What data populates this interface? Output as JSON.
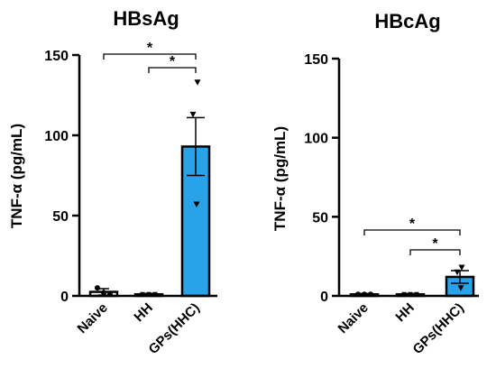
{
  "chart_data": [
    {
      "type": "bar",
      "title": "HBsAg",
      "ylabel": "TNF-α (pg/mL)",
      "xlabel": "",
      "categories": [
        "Naive",
        "HH",
        "GPs(HHC)"
      ],
      "values": [
        2.5,
        1.0,
        93.0
      ],
      "errors": [
        2.0,
        0.5,
        18.0
      ],
      "points": [
        [
          5,
          2,
          1
        ],
        [
          1,
          1,
          1
        ],
        [
          133,
          113,
          57
        ]
      ],
      "point_markers": [
        "circle",
        "square",
        "triangle-down"
      ],
      "ylim": [
        0,
        150
      ],
      "yticks": [
        0,
        50,
        100,
        150
      ],
      "significance": [
        {
          "from": "Naive",
          "to": "GPs(HHC)",
          "label": "*"
        },
        {
          "from": "HH",
          "to": "GPs(HHC)",
          "label": "*"
        }
      ],
      "colors": {
        "control": "#ffffff",
        "treated": "#29a3e8"
      }
    },
    {
      "type": "bar",
      "title": "HBcAg",
      "ylabel": "TNF-α (pg/mL)",
      "xlabel": "",
      "categories": [
        "Naive",
        "HH",
        "GPs(HHC)"
      ],
      "values": [
        1.0,
        1.0,
        12.0
      ],
      "errors": [
        0.5,
        0.5,
        4.0
      ],
      "points": [
        [
          1,
          1,
          1
        ],
        [
          1,
          1,
          1
        ],
        [
          18,
          15,
          5
        ]
      ],
      "point_markers": [
        "circle",
        "square",
        "triangle-down"
      ],
      "ylim": [
        0,
        150
      ],
      "yticks": [
        0,
        50,
        100,
        150
      ],
      "significance": [
        {
          "from": "Naive",
          "to": "GPs(HHC)",
          "label": "*"
        },
        {
          "from": "HH",
          "to": "GPs(HHC)",
          "label": "*"
        }
      ],
      "colors": {
        "control": "#ffffff",
        "treated": "#29a3e8"
      }
    }
  ]
}
